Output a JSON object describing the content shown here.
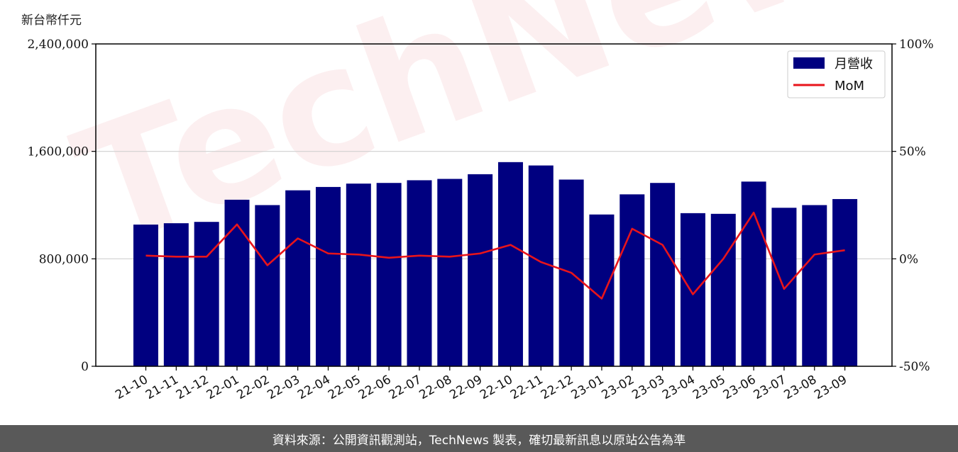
{
  "unit_label": "新台幣仟元",
  "footer_text": "資料來源：公開資訊觀測站，TechNews 製表，確切最新訊息以原站公告為準",
  "watermark_text": "TechNews",
  "colors": {
    "bar": "#000080",
    "line": "#e8141b",
    "grid": "#d0d0d0",
    "footer_bg": "#595959"
  },
  "chart_data": {
    "type": "bar",
    "categories": [
      "21-10",
      "21-11",
      "21-12",
      "22-01",
      "22-02",
      "22-03",
      "22-04",
      "22-05",
      "22-06",
      "22-07",
      "22-08",
      "22-09",
      "22-10",
      "22-11",
      "22-12",
      "23-01",
      "23-02",
      "23-03",
      "23-04",
      "23-05",
      "23-06",
      "23-07",
      "23-08",
      "23-09"
    ],
    "series": [
      {
        "name": "月營收",
        "type": "bar",
        "axis": "left",
        "values": [
          1055000,
          1065000,
          1075000,
          1240000,
          1200000,
          1310000,
          1335000,
          1360000,
          1365000,
          1385000,
          1395000,
          1430000,
          1520000,
          1495000,
          1390000,
          1130000,
          1280000,
          1365000,
          1140000,
          1135000,
          1375000,
          1180000,
          1200000,
          1245000
        ]
      },
      {
        "name": "MoM",
        "type": "line",
        "axis": "right",
        "values": [
          1.5,
          1.0,
          1.0,
          16.0,
          -3.0,
          9.5,
          2.5,
          2.0,
          0.5,
          1.5,
          1.0,
          2.5,
          6.5,
          -1.5,
          -6.5,
          -18.5,
          14.0,
          6.5,
          -16.5,
          0.0,
          21.5,
          -14.0,
          2.0,
          4.0
        ]
      }
    ],
    "y_left": {
      "ylim": [
        0,
        2400000
      ],
      "ticks": [
        "0",
        "800,000",
        "1,600,000",
        "2,400,000"
      ],
      "tick_values": [
        0,
        800000,
        1600000,
        2400000
      ]
    },
    "y_right": {
      "ylim": [
        -50,
        100
      ],
      "ticks": [
        "-50%",
        "0%",
        "50%",
        "100%"
      ],
      "tick_values": [
        -50,
        0,
        50,
        100
      ]
    },
    "grid": "horizontal",
    "legend_position": "top-right"
  }
}
